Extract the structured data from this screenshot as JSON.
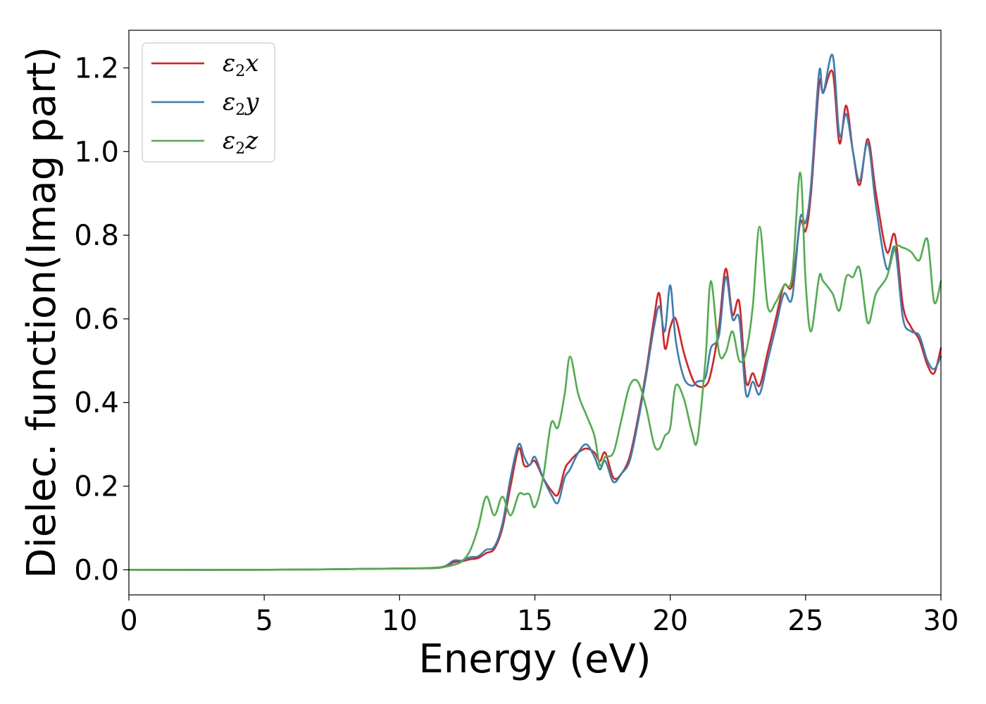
{
  "chart_data": {
    "type": "line",
    "title": "",
    "xlabel": "Energy (eV)",
    "ylabel": "Dielec. function(Imag part)",
    "xlim": [
      0,
      30
    ],
    "ylim": [
      -0.06,
      1.29
    ],
    "xticks": [
      0,
      5,
      10,
      15,
      20,
      25,
      30
    ],
    "xtick_labels": [
      "0",
      "5",
      "10",
      "15",
      "20",
      "25",
      "30"
    ],
    "yticks": [
      0.0,
      0.2,
      0.4,
      0.6,
      0.8,
      1.0,
      1.2
    ],
    "ytick_labels": [
      "0.0",
      "0.2",
      "0.4",
      "0.6",
      "0.8",
      "1.0",
      "1.2"
    ],
    "grid": false,
    "legend_position": "top-left",
    "series": [
      {
        "name": "ε₂x",
        "legend_main": "ε",
        "legend_sub": "2",
        "legend_suffix": "x",
        "color": "#e41a1c",
        "x": [
          0,
          5,
          10,
          11.5,
          12.0,
          12.3,
          12.6,
          12.9,
          13.2,
          13.5,
          13.8,
          14.1,
          14.4,
          14.6,
          14.8,
          15.0,
          15.3,
          15.6,
          15.85,
          16.1,
          16.3,
          16.6,
          16.9,
          17.2,
          17.4,
          17.6,
          17.9,
          18.2,
          18.5,
          18.8,
          19.1,
          19.4,
          19.6,
          19.8,
          20.0,
          20.2,
          20.5,
          20.8,
          21.0,
          21.3,
          21.5,
          21.8,
          22.05,
          22.3,
          22.55,
          22.8,
          23.05,
          23.3,
          23.6,
          23.9,
          24.2,
          24.5,
          24.8,
          25.0,
          25.2,
          25.5,
          25.65,
          26.0,
          26.25,
          26.5,
          26.75,
          27.0,
          27.3,
          27.6,
          28.0,
          28.3,
          28.6,
          28.9,
          29.2,
          29.5,
          29.75,
          30.0
        ],
        "y": [
          0.0,
          0.0,
          0.003,
          0.005,
          0.018,
          0.02,
          0.025,
          0.028,
          0.04,
          0.05,
          0.1,
          0.2,
          0.29,
          0.25,
          0.25,
          0.26,
          0.22,
          0.19,
          0.18,
          0.24,
          0.26,
          0.28,
          0.29,
          0.28,
          0.26,
          0.28,
          0.22,
          0.23,
          0.27,
          0.36,
          0.47,
          0.6,
          0.66,
          0.53,
          0.58,
          0.6,
          0.52,
          0.46,
          0.44,
          0.44,
          0.47,
          0.58,
          0.72,
          0.61,
          0.64,
          0.45,
          0.47,
          0.44,
          0.52,
          0.6,
          0.68,
          0.68,
          0.83,
          0.81,
          0.9,
          1.16,
          1.14,
          1.19,
          1.02,
          1.11,
          1.0,
          0.92,
          1.03,
          0.9,
          0.76,
          0.8,
          0.63,
          0.58,
          0.55,
          0.49,
          0.47,
          0.53
        ]
      },
      {
        "name": "ε₂y",
        "legend_main": "ε",
        "legend_sub": "2",
        "legend_suffix": "y",
        "color": "#377eb8",
        "x": [
          0,
          5,
          10,
          11.5,
          12.0,
          12.3,
          12.6,
          12.9,
          13.2,
          13.5,
          13.8,
          14.1,
          14.4,
          14.6,
          14.8,
          15.0,
          15.3,
          15.6,
          15.85,
          16.1,
          16.3,
          16.6,
          16.9,
          17.2,
          17.4,
          17.6,
          17.9,
          18.2,
          18.5,
          18.8,
          19.1,
          19.4,
          19.6,
          19.8,
          20.0,
          20.2,
          20.5,
          20.8,
          21.0,
          21.3,
          21.5,
          21.8,
          22.05,
          22.3,
          22.55,
          22.8,
          23.05,
          23.3,
          23.6,
          23.9,
          24.2,
          24.5,
          24.8,
          25.0,
          25.2,
          25.5,
          25.65,
          26.0,
          26.25,
          26.5,
          26.75,
          27.0,
          27.3,
          27.6,
          28.0,
          28.3,
          28.6,
          28.9,
          29.2,
          29.5,
          29.75,
          30.0
        ],
        "y": [
          0.0,
          0.0,
          0.003,
          0.006,
          0.022,
          0.022,
          0.03,
          0.032,
          0.048,
          0.055,
          0.11,
          0.22,
          0.3,
          0.27,
          0.25,
          0.27,
          0.22,
          0.18,
          0.16,
          0.22,
          0.24,
          0.28,
          0.3,
          0.27,
          0.24,
          0.26,
          0.21,
          0.23,
          0.26,
          0.35,
          0.46,
          0.58,
          0.63,
          0.57,
          0.68,
          0.55,
          0.46,
          0.44,
          0.45,
          0.46,
          0.53,
          0.56,
          0.7,
          0.6,
          0.6,
          0.42,
          0.45,
          0.42,
          0.5,
          0.58,
          0.66,
          0.65,
          0.84,
          0.83,
          0.92,
          1.19,
          1.14,
          1.23,
          1.04,
          1.09,
          1.0,
          0.93,
          1.02,
          0.87,
          0.72,
          0.77,
          0.6,
          0.57,
          0.56,
          0.5,
          0.48,
          0.51
        ]
      },
      {
        "name": "ε₂z",
        "legend_main": "ε",
        "legend_sub": "2",
        "legend_suffix": "z",
        "color": "#4daf4a",
        "x": [
          0,
          5,
          10,
          11.5,
          12.0,
          12.3,
          12.6,
          12.9,
          13.2,
          13.5,
          13.8,
          14.1,
          14.4,
          14.6,
          14.8,
          15.0,
          15.3,
          15.6,
          15.85,
          16.1,
          16.3,
          16.6,
          16.9,
          17.2,
          17.4,
          17.6,
          17.9,
          18.2,
          18.5,
          18.8,
          19.1,
          19.4,
          19.6,
          19.8,
          20.0,
          20.2,
          20.5,
          20.8,
          21.0,
          21.3,
          21.5,
          21.8,
          22.05,
          22.3,
          22.55,
          22.8,
          23.05,
          23.3,
          23.6,
          23.9,
          24.2,
          24.5,
          24.8,
          25.0,
          25.2,
          25.5,
          25.65,
          26.0,
          26.25,
          26.5,
          26.75,
          27.0,
          27.3,
          27.6,
          28.0,
          28.3,
          28.6,
          28.9,
          29.2,
          29.5,
          29.75,
          30.0
        ],
        "y": [
          0.0,
          0.0,
          0.003,
          0.006,
          0.012,
          0.02,
          0.045,
          0.1,
          0.175,
          0.13,
          0.175,
          0.13,
          0.18,
          0.18,
          0.18,
          0.15,
          0.22,
          0.35,
          0.34,
          0.42,
          0.51,
          0.42,
          0.37,
          0.32,
          0.25,
          0.27,
          0.28,
          0.36,
          0.44,
          0.45,
          0.39,
          0.3,
          0.29,
          0.32,
          0.34,
          0.44,
          0.41,
          0.33,
          0.31,
          0.5,
          0.69,
          0.52,
          0.52,
          0.57,
          0.5,
          0.52,
          0.63,
          0.82,
          0.63,
          0.64,
          0.68,
          0.7,
          0.95,
          0.69,
          0.57,
          0.7,
          0.69,
          0.66,
          0.62,
          0.7,
          0.7,
          0.72,
          0.59,
          0.66,
          0.7,
          0.77,
          0.77,
          0.76,
          0.74,
          0.79,
          0.64,
          0.69
        ]
      }
    ]
  }
}
